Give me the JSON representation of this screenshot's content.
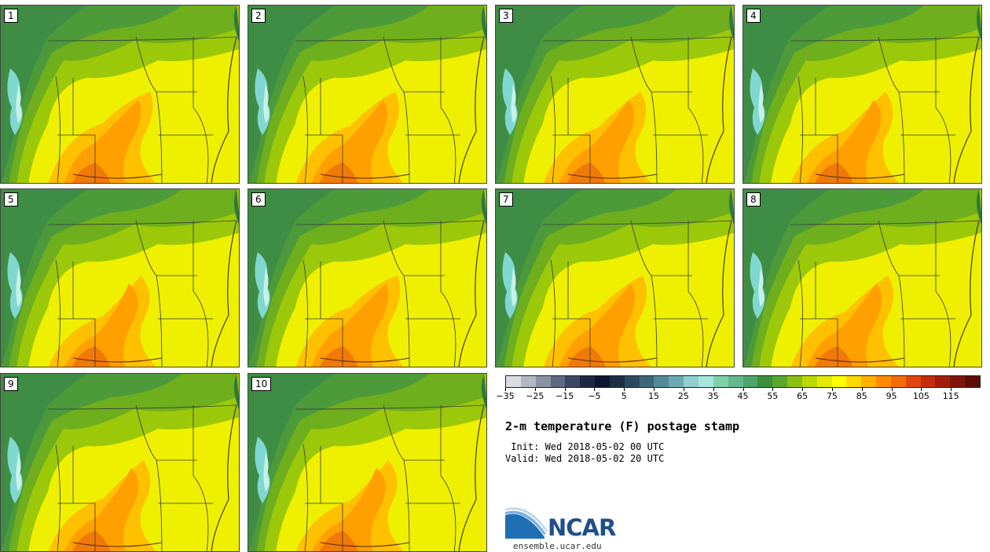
{
  "members": [
    "1",
    "2",
    "3",
    "4",
    "5",
    "6",
    "7",
    "8",
    "9",
    "10"
  ],
  "colorbar": {
    "colors": [
      "#d9dde2",
      "#b2b8c2",
      "#8a92a3",
      "#5f6a82",
      "#3a4762",
      "#1c2740",
      "#0c1630",
      "#1e2f44",
      "#2b4a5e",
      "#3d6779",
      "#548a98",
      "#6ca9b2",
      "#8fcfcf",
      "#a5e6de",
      "#7fcfa9",
      "#63b88c",
      "#4ea368",
      "#3c8f3d",
      "#5aa82b",
      "#8cbf14",
      "#b9d900",
      "#e1ec00",
      "#ffff00",
      "#ffd800",
      "#ffb100",
      "#ff8c00",
      "#f36a0a",
      "#e0440f",
      "#c12d0e",
      "#a21e0a",
      "#7f1508",
      "#5c0e06"
    ],
    "tick_labels": [
      "−35",
      "−25",
      "−15",
      "−5",
      "5",
      "15",
      "25",
      "35",
      "45",
      "55",
      "65",
      "75",
      "85",
      "95",
      "105",
      "115"
    ]
  },
  "title": "2-m temperature (F) postage stamp",
  "init": " Init: Wed 2018-05-02 00 UTC",
  "valid": "Valid: Wed 2018-05-02 20 UTC",
  "logo": {
    "text": "NCAR",
    "site": "ensemble.ucar.edu"
  }
}
